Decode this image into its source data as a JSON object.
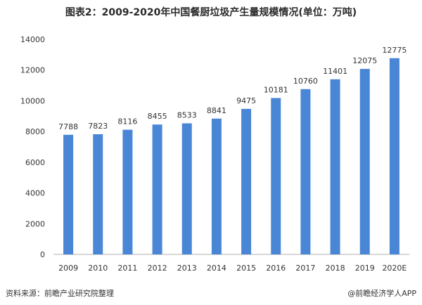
{
  "title": "图表2：2009-2020年中国餐厨垃圾产生量规模情况(单位：万吨)",
  "source": "资料来源：前瞻产业研究院整理",
  "credit": "@前瞻经济学人APP",
  "colors": {
    "bar": "#4a86d6",
    "axis_text": "#333333",
    "axis_line": "#b0b0b0"
  },
  "chart_data": {
    "type": "bar",
    "title": "图表2：2009-2020年中国餐厨垃圾产生量规模情况(单位：万吨)",
    "categories": [
      "2009",
      "2010",
      "2011",
      "2012",
      "2013",
      "2014",
      "2015",
      "2016",
      "2017",
      "2018",
      "2019",
      "2020E"
    ],
    "values": [
      7788,
      7823,
      8116,
      8455,
      8533,
      8841,
      9475,
      10181,
      10760,
      11401,
      12075,
      12775
    ],
    "data_labels": [
      "7788",
      "7823",
      "8116",
      "8455",
      "8533",
      "8841",
      "9475",
      "10181",
      "10760",
      "11401",
      "12075",
      "12775"
    ],
    "yticks": [
      "0",
      "2000",
      "4000",
      "6000",
      "8000",
      "10000",
      "12000",
      "14000"
    ],
    "ylim": [
      0,
      14000
    ],
    "grid": false,
    "legend": false
  }
}
